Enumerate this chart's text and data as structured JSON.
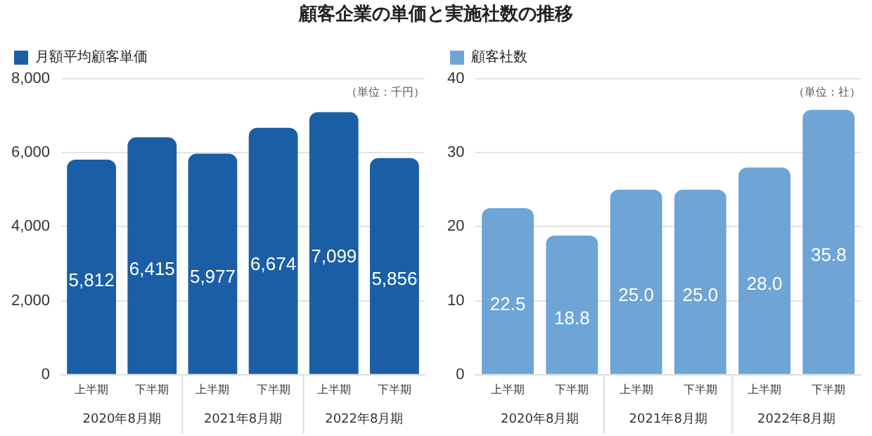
{
  "chart_data": [
    {
      "type": "bar",
      "title": "顧客企業の単価と実施社数の推移",
      "subtitle": "（単位：千円）",
      "categories": [
        "上半期",
        "下半期",
        "上半期",
        "下半期",
        "上半期",
        "下半期"
      ],
      "series": [
        {
          "name": "月額平均顧客単価",
          "color": "#1a5fa5",
          "values": [
            5812,
            6415,
            5977,
            6674,
            7099,
            5856
          ],
          "value_labels": [
            "5,812",
            "6,415",
            "5,977",
            "6,674",
            "7,099",
            "5,856"
          ]
        }
      ],
      "annotations": [
        "2020年8月期",
        "2021年8月期",
        "2022年8月期"
      ],
      "ylim": [
        0,
        8000
      ],
      "yticks": [
        0,
        {
          "value": 2000,
          "label": "2,000"
        },
        {
          "value": 4000,
          "label": "4,000"
        },
        {
          "value": 6000,
          "label": "6,000"
        },
        {
          "value": 8000,
          "label": "8,000"
        }
      ],
      "grid": "y",
      "legend": "top left"
    },
    {
      "type": "bar",
      "subtitle": "（単位：社）",
      "categories": [
        "上半期",
        "下半期",
        "上半期",
        "下半期",
        "上半期",
        "下半期"
      ],
      "series": [
        {
          "name": "顧客社数",
          "color": "#6fa4d6",
          "values": [
            22.5,
            18.8,
            25.0,
            25.0,
            28.0,
            35.8
          ],
          "value_labels": [
            "22.5",
            "18.8",
            "25.0",
            "25.0",
            "28.0",
            "35.8"
          ]
        }
      ],
      "annotations": [
        "2020年8月期",
        "2021年8月期",
        "2022年8月期"
      ],
      "ylim": [
        0,
        40
      ],
      "yticks": [
        0,
        10,
        20,
        30,
        40
      ],
      "grid": "y",
      "legend": "top left"
    }
  ]
}
